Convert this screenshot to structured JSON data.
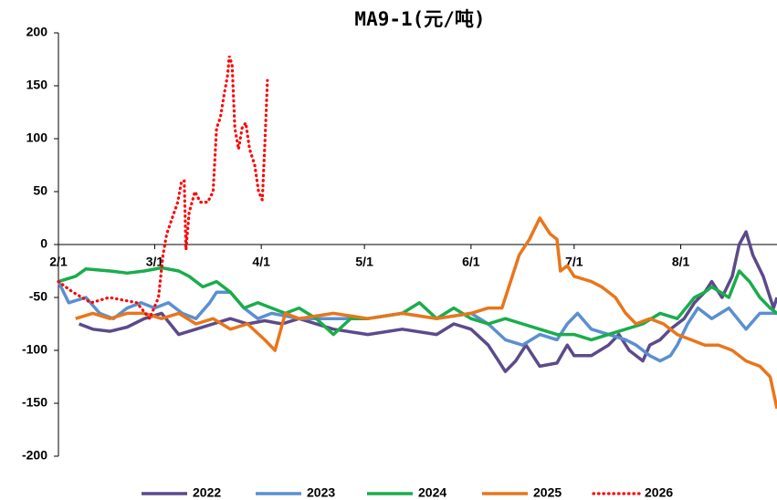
{
  "chart_data": {
    "type": "line",
    "title": "MA9-1(元/吨)",
    "xlim": [
      0,
      209
    ],
    "ylim": [
      -200,
      200
    ],
    "xticks": [
      {
        "value": 0,
        "label": "2/1"
      },
      {
        "value": 28,
        "label": "3/1"
      },
      {
        "value": 59,
        "label": "4/1"
      },
      {
        "value": 89,
        "label": "5/1"
      },
      {
        "value": 120,
        "label": "6/1"
      },
      {
        "value": 150,
        "label": "7/1"
      },
      {
        "value": 181,
        "label": "8/1"
      }
    ],
    "yticks": [
      -200,
      -150,
      -100,
      -50,
      0,
      50,
      100,
      150,
      200
    ],
    "legend": "bottom",
    "series": [
      {
        "name": "2022",
        "color": "#5c4a8a",
        "style": "solid",
        "x": [
          6,
          10,
          15,
          20,
          25,
          30,
          35,
          40,
          45,
          50,
          55,
          60,
          65,
          70,
          80,
          90,
          100,
          110,
          115,
          120,
          125,
          128,
          130,
          133,
          136,
          140,
          145,
          148,
          150,
          155,
          160,
          163,
          166,
          170,
          172,
          175,
          178,
          182,
          185,
          188,
          190,
          193,
          196,
          198,
          200,
          202,
          205,
          208,
          209
        ],
        "values": [
          -75,
          -80,
          -82,
          -78,
          -70,
          -65,
          -85,
          -80,
          -75,
          -70,
          -75,
          -72,
          -75,
          -70,
          -80,
          -85,
          -80,
          -85,
          -75,
          -80,
          -95,
          -110,
          -120,
          -110,
          -95,
          -115,
          -112,
          -95,
          -105,
          -105,
          -95,
          -85,
          -100,
          -110,
          -95,
          -90,
          -80,
          -70,
          -55,
          -45,
          -35,
          -50,
          -30,
          0,
          12,
          -10,
          -30,
          -60,
          -50
        ]
      },
      {
        "name": "2023",
        "color": "#5b8fd0",
        "style": "solid",
        "x": [
          0,
          3,
          8,
          12,
          16,
          20,
          24,
          28,
          32,
          36,
          40,
          44,
          46,
          50,
          54,
          58,
          62,
          70,
          80,
          90,
          100,
          110,
          120,
          125,
          130,
          135,
          140,
          145,
          148,
          151,
          155,
          160,
          165,
          168,
          172,
          175,
          178,
          180,
          183,
          186,
          190,
          195,
          200,
          204,
          209
        ],
        "values": [
          -35,
          -55,
          -50,
          -65,
          -70,
          -60,
          -55,
          -60,
          -55,
          -65,
          -70,
          -55,
          -45,
          -45,
          -60,
          -70,
          -65,
          -70,
          -70,
          -70,
          -65,
          -70,
          -65,
          -75,
          -90,
          -95,
          -85,
          -90,
          -75,
          -65,
          -80,
          -85,
          -90,
          -95,
          -105,
          -110,
          -105,
          -95,
          -75,
          -60,
          -70,
          -60,
          -80,
          -65,
          -65
        ]
      },
      {
        "name": "2024",
        "color": "#1aad4b",
        "style": "solid",
        "x": [
          0,
          5,
          8,
          15,
          20,
          25,
          30,
          35,
          38,
          42,
          46,
          50,
          54,
          58,
          62,
          66,
          70,
          75,
          80,
          85,
          90,
          100,
          105,
          110,
          115,
          120,
          125,
          130,
          135,
          140,
          145,
          150,
          155,
          160,
          165,
          170,
          175,
          180,
          185,
          188,
          190,
          195,
          198,
          201,
          204,
          207,
          209
        ],
        "values": [
          -35,
          -30,
          -23,
          -25,
          -27,
          -25,
          -22,
          -25,
          -30,
          -40,
          -35,
          -45,
          -60,
          -55,
          -60,
          -65,
          -60,
          -70,
          -85,
          -70,
          -70,
          -65,
          -55,
          -70,
          -60,
          -70,
          -75,
          -70,
          -75,
          -80,
          -85,
          -85,
          -90,
          -85,
          -80,
          -75,
          -65,
          -70,
          -50,
          -45,
          -40,
          -50,
          -25,
          -35,
          -50,
          -60,
          -65
        ]
      },
      {
        "name": "2025",
        "color": "#e8761b",
        "style": "solid",
        "x": [
          5,
          10,
          15,
          20,
          25,
          30,
          35,
          40,
          45,
          50,
          55,
          60,
          63,
          66,
          70,
          80,
          90,
          100,
          110,
          120,
          125,
          129,
          131,
          134,
          137,
          140,
          143,
          145,
          146,
          148,
          150,
          155,
          158,
          162,
          165,
          168,
          172,
          176,
          180,
          184,
          188,
          192,
          196,
          200,
          204,
          207,
          209
        ],
        "values": [
          -70,
          -65,
          -70,
          -65,
          -65,
          -70,
          -65,
          -75,
          -70,
          -80,
          -75,
          -90,
          -100,
          -65,
          -70,
          -65,
          -70,
          -65,
          -70,
          -65,
          -60,
          -60,
          -40,
          -10,
          5,
          25,
          10,
          5,
          -25,
          -20,
          -30,
          -35,
          -40,
          -50,
          -65,
          -75,
          -70,
          -75,
          -85,
          -90,
          -95,
          -95,
          -100,
          -110,
          -115,
          -125,
          -155
        ]
      },
      {
        "name": "2026",
        "color": "#ff0000",
        "style": "dotted",
        "x": [
          0,
          4.2,
          9.5,
          14.8,
          22.8,
          26.5,
          29.1,
          30.4,
          31.5,
          33.1,
          34.7,
          35.8,
          36.6,
          37.1,
          38,
          39.7,
          41.3,
          43.4,
          45,
          46,
          47.1,
          48.1,
          49.2,
          49.7,
          50.5,
          51.3,
          52.4,
          53.4,
          54.5,
          55.6,
          57.1,
          58.2,
          59.3,
          60.1,
          60.8
        ],
        "values": [
          -35,
          -45,
          -55,
          -50,
          -55,
          -70,
          -50,
          -10,
          10,
          25,
          40,
          60,
          60,
          -5,
          30,
          50,
          40,
          40,
          50,
          110,
          120,
          140,
          160,
          178,
          170,
          110,
          90,
          110,
          115,
          90,
          75,
          50,
          42,
          100,
          155
        ]
      }
    ]
  }
}
